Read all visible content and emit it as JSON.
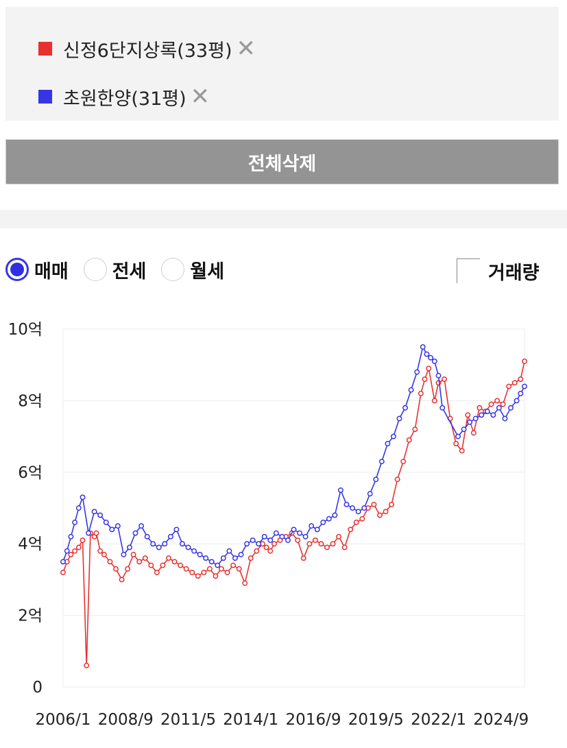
{
  "legend": {
    "items": [
      {
        "label": "신정6단지상록(33평)",
        "color": "#e83030",
        "close": "✕"
      },
      {
        "label": "초원한양(31평)",
        "color": "#3535e6",
        "close": "✕"
      }
    ]
  },
  "delete_all_label": "전체삭제",
  "trade_types": [
    {
      "label": "매매",
      "checked": true
    },
    {
      "label": "전세",
      "checked": false
    },
    {
      "label": "월세",
      "checked": false
    }
  ],
  "volume_label": "거래량",
  "chart_data": {
    "type": "line",
    "y_unit": "억",
    "ylim": [
      0,
      10
    ],
    "y_ticks": [
      {
        "value": 0,
        "label": "0"
      },
      {
        "value": 2,
        "label": "2억"
      },
      {
        "value": 4,
        "label": "4억"
      },
      {
        "value": 6,
        "label": "6억"
      },
      {
        "value": 8,
        "label": "8억"
      },
      {
        "value": 10,
        "label": "10억"
      }
    ],
    "x_range": [
      "2006/1",
      "2025/9"
    ],
    "x_ticks": [
      "2006/1",
      "2008/9",
      "2011/5",
      "2014/1",
      "2016/9",
      "2019/5",
      "2022/1",
      "2024/9"
    ],
    "grid": true,
    "series": [
      {
        "name": "신정6단지상록(33평)",
        "color": "#e83030",
        "x": [
          "2006/1",
          "2006/3",
          "2006/5",
          "2006/7",
          "2006/9",
          "2006/11",
          "2007/1",
          "2007/3",
          "2007/5",
          "2007/6",
          "2007/8",
          "2007/10",
          "2008/1",
          "2008/4",
          "2008/7",
          "2008/10",
          "2009/1",
          "2009/4",
          "2009/7",
          "2009/10",
          "2010/1",
          "2010/4",
          "2010/7",
          "2010/10",
          "2011/1",
          "2011/4",
          "2011/7",
          "2011/10",
          "2012/1",
          "2012/4",
          "2012/7",
          "2012/10",
          "2013/1",
          "2013/4",
          "2013/7",
          "2013/10",
          "2014/1",
          "2014/4",
          "2014/7",
          "2014/9",
          "2014/11",
          "2015/1",
          "2015/4",
          "2015/7",
          "2015/10",
          "2016/1",
          "2016/4",
          "2016/7",
          "2016/10",
          "2017/1",
          "2017/4",
          "2017/7",
          "2017/10",
          "2018/1",
          "2018/4",
          "2018/7",
          "2018/10",
          "2019/1",
          "2019/4",
          "2019/7",
          "2019/10",
          "2020/1",
          "2020/4",
          "2020/7",
          "2020/10",
          "2021/1",
          "2021/4",
          "2021/6",
          "2021/8",
          "2021/11",
          "2022/1",
          "2022/4",
          "2022/7",
          "2022/10",
          "2023/1",
          "2023/4",
          "2023/7",
          "2023/10",
          "2024/1",
          "2024/4",
          "2024/7",
          "2024/10",
          "2025/1",
          "2025/4",
          "2025/7",
          "2025/9"
        ],
        "values": [
          3.2,
          3.5,
          3.7,
          3.8,
          3.9,
          4.1,
          0.6,
          4.3,
          4.2,
          4.3,
          3.8,
          3.7,
          3.5,
          3.3,
          3.0,
          3.3,
          3.7,
          3.5,
          3.6,
          3.4,
          3.2,
          3.4,
          3.6,
          3.5,
          3.4,
          3.3,
          3.2,
          3.1,
          3.2,
          3.3,
          3.1,
          3.3,
          3.2,
          3.4,
          3.3,
          2.9,
          3.6,
          3.8,
          4.0,
          3.9,
          3.8,
          4.0,
          4.1,
          4.2,
          4.3,
          4.1,
          3.6,
          4.0,
          4.1,
          4.0,
          3.9,
          4.0,
          4.2,
          3.9,
          4.4,
          4.6,
          4.7,
          5.0,
          5.1,
          4.8,
          4.9,
          5.1,
          5.8,
          6.3,
          6.9,
          7.2,
          8.2,
          8.6,
          8.9,
          8.0,
          8.5,
          8.6,
          7.5,
          6.8,
          6.6,
          7.6,
          7.1,
          7.8,
          7.7,
          7.9,
          8.0,
          7.9,
          8.4,
          8.5,
          8.6,
          9.1
        ]
      },
      {
        "name": "초원한양(31평)",
        "color": "#3535e6",
        "x": [
          "2006/1",
          "2006/3",
          "2006/5",
          "2006/7",
          "2006/9",
          "2006/11",
          "2007/2",
          "2007/5",
          "2007/8",
          "2007/11",
          "2008/2",
          "2008/5",
          "2008/8",
          "2008/11",
          "2009/2",
          "2009/5",
          "2009/8",
          "2009/11",
          "2010/2",
          "2010/5",
          "2010/8",
          "2010/11",
          "2011/2",
          "2011/5",
          "2011/8",
          "2011/11",
          "2012/2",
          "2012/5",
          "2012/8",
          "2012/11",
          "2013/2",
          "2013/5",
          "2013/8",
          "2013/11",
          "2014/2",
          "2014/5",
          "2014/8",
          "2014/11",
          "2015/2",
          "2015/5",
          "2015/8",
          "2015/11",
          "2016/2",
          "2016/5",
          "2016/8",
          "2016/11",
          "2017/2",
          "2017/5",
          "2017/8",
          "2017/11",
          "2018/2",
          "2018/5",
          "2018/8",
          "2018/11",
          "2019/2",
          "2019/5",
          "2019/8",
          "2019/11",
          "2020/2",
          "2020/5",
          "2020/8",
          "2020/11",
          "2021/2",
          "2021/5",
          "2021/7",
          "2021/9",
          "2021/11",
          "2022/1",
          "2022/3",
          "2022/11",
          "2023/2",
          "2023/5",
          "2023/8",
          "2023/11",
          "2024/2",
          "2024/5",
          "2024/8",
          "2024/11",
          "2025/2",
          "2025/5",
          "2025/7",
          "2025/9"
        ],
        "values": [
          3.5,
          3.8,
          4.2,
          4.6,
          5.0,
          5.3,
          4.3,
          4.9,
          4.8,
          4.6,
          4.4,
          4.5,
          3.7,
          3.9,
          4.3,
          4.5,
          4.2,
          4.0,
          3.9,
          4.0,
          4.2,
          4.4,
          4.0,
          3.9,
          3.8,
          3.7,
          3.6,
          3.5,
          3.4,
          3.6,
          3.8,
          3.6,
          3.7,
          4.0,
          4.1,
          4.0,
          4.2,
          4.1,
          4.3,
          4.2,
          4.1,
          4.4,
          4.3,
          4.2,
          4.5,
          4.4,
          4.6,
          4.7,
          4.8,
          5.5,
          5.1,
          5.0,
          4.9,
          5.0,
          5.4,
          5.8,
          6.3,
          6.8,
          7.0,
          7.5,
          7.8,
          8.3,
          8.8,
          9.5,
          9.3,
          9.2,
          9.1,
          8.7,
          7.8,
          7.0,
          7.2,
          7.4,
          7.5,
          7.6,
          7.7,
          7.6,
          7.8,
          7.5,
          7.8,
          8.0,
          8.2,
          8.4
        ]
      }
    ]
  }
}
